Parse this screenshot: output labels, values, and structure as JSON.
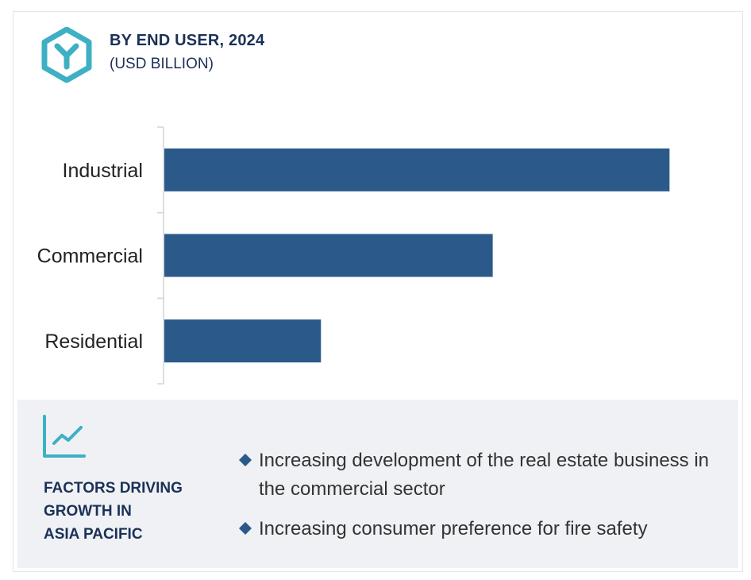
{
  "header": {
    "title": "BY END USER, 2024",
    "subtitle": "(USD BILLION)",
    "logo_icon": "hexagon-y-logo-icon"
  },
  "colors": {
    "bar": "#2b5a8a",
    "accent": "#3db0c4",
    "dark_text": "#1b3157",
    "panel_bg": "#eff1f5"
  },
  "chart_data": {
    "type": "bar",
    "orientation": "horizontal",
    "categories": [
      "Industrial",
      "Commercial",
      "Residential"
    ],
    "values": [
      100,
      65,
      31
    ],
    "title": "BY END USER, 2024",
    "subtitle": "(USD BILLION)",
    "xlim": [
      0,
      110
    ],
    "grid": false,
    "legend": "none"
  },
  "factors": {
    "title_lines": [
      "FACTORS DRIVING",
      "GROWTH IN",
      "ASIA PACIFIC"
    ],
    "icon": "trend-chart-icon",
    "bullet_icon": "diamond-bullet-icon",
    "items": [
      "Increasing development of the real estate business in the commercial sector",
      "Increasing consumer preference for fire safety"
    ]
  }
}
